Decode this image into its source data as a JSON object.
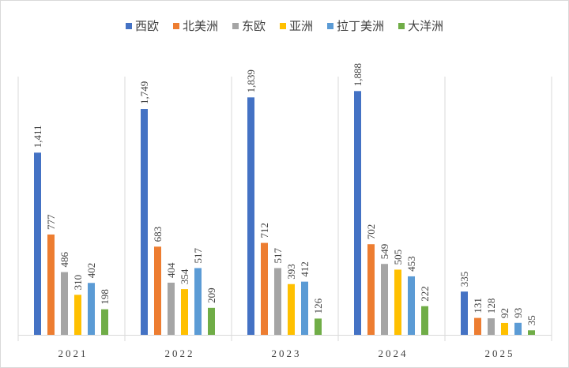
{
  "chart_data": {
    "type": "bar",
    "title": "",
    "xlabel": "",
    "ylabel": "",
    "categories": [
      "2021",
      "2022",
      "2023",
      "2024",
      "2025"
    ],
    "ylim": [
      0,
      2000
    ],
    "grid": false,
    "legend_position": "top",
    "series": [
      {
        "name": "西欧",
        "color": "#4472c4",
        "values": [
          1411,
          1749,
          1839,
          1888,
          335
        ],
        "labels": [
          "1,411",
          "1,749",
          "1,839",
          "1,888",
          "335"
        ]
      },
      {
        "name": "北美洲",
        "color": "#ed7d31",
        "values": [
          777,
          683,
          712,
          702,
          131
        ],
        "labels": [
          "777",
          "683",
          "712",
          "702",
          "131"
        ]
      },
      {
        "name": "东欧",
        "color": "#a5a5a5",
        "values": [
          486,
          404,
          517,
          549,
          128
        ],
        "labels": [
          "486",
          "404",
          "517",
          "549",
          "128"
        ]
      },
      {
        "name": "亚洲",
        "color": "#ffc000",
        "values": [
          310,
          354,
          393,
          505,
          92
        ],
        "labels": [
          "310",
          "354",
          "393",
          "505",
          "92"
        ]
      },
      {
        "name": "拉丁美洲",
        "color": "#5b9bd5",
        "values": [
          402,
          517,
          412,
          453,
          93
        ],
        "labels": [
          "402",
          "517",
          "412",
          "453",
          "93"
        ]
      },
      {
        "name": "大洋洲",
        "color": "#70ad47",
        "values": [
          198,
          209,
          126,
          222,
          35
        ],
        "labels": [
          "198",
          "209",
          "126",
          "222",
          "35"
        ]
      }
    ]
  }
}
